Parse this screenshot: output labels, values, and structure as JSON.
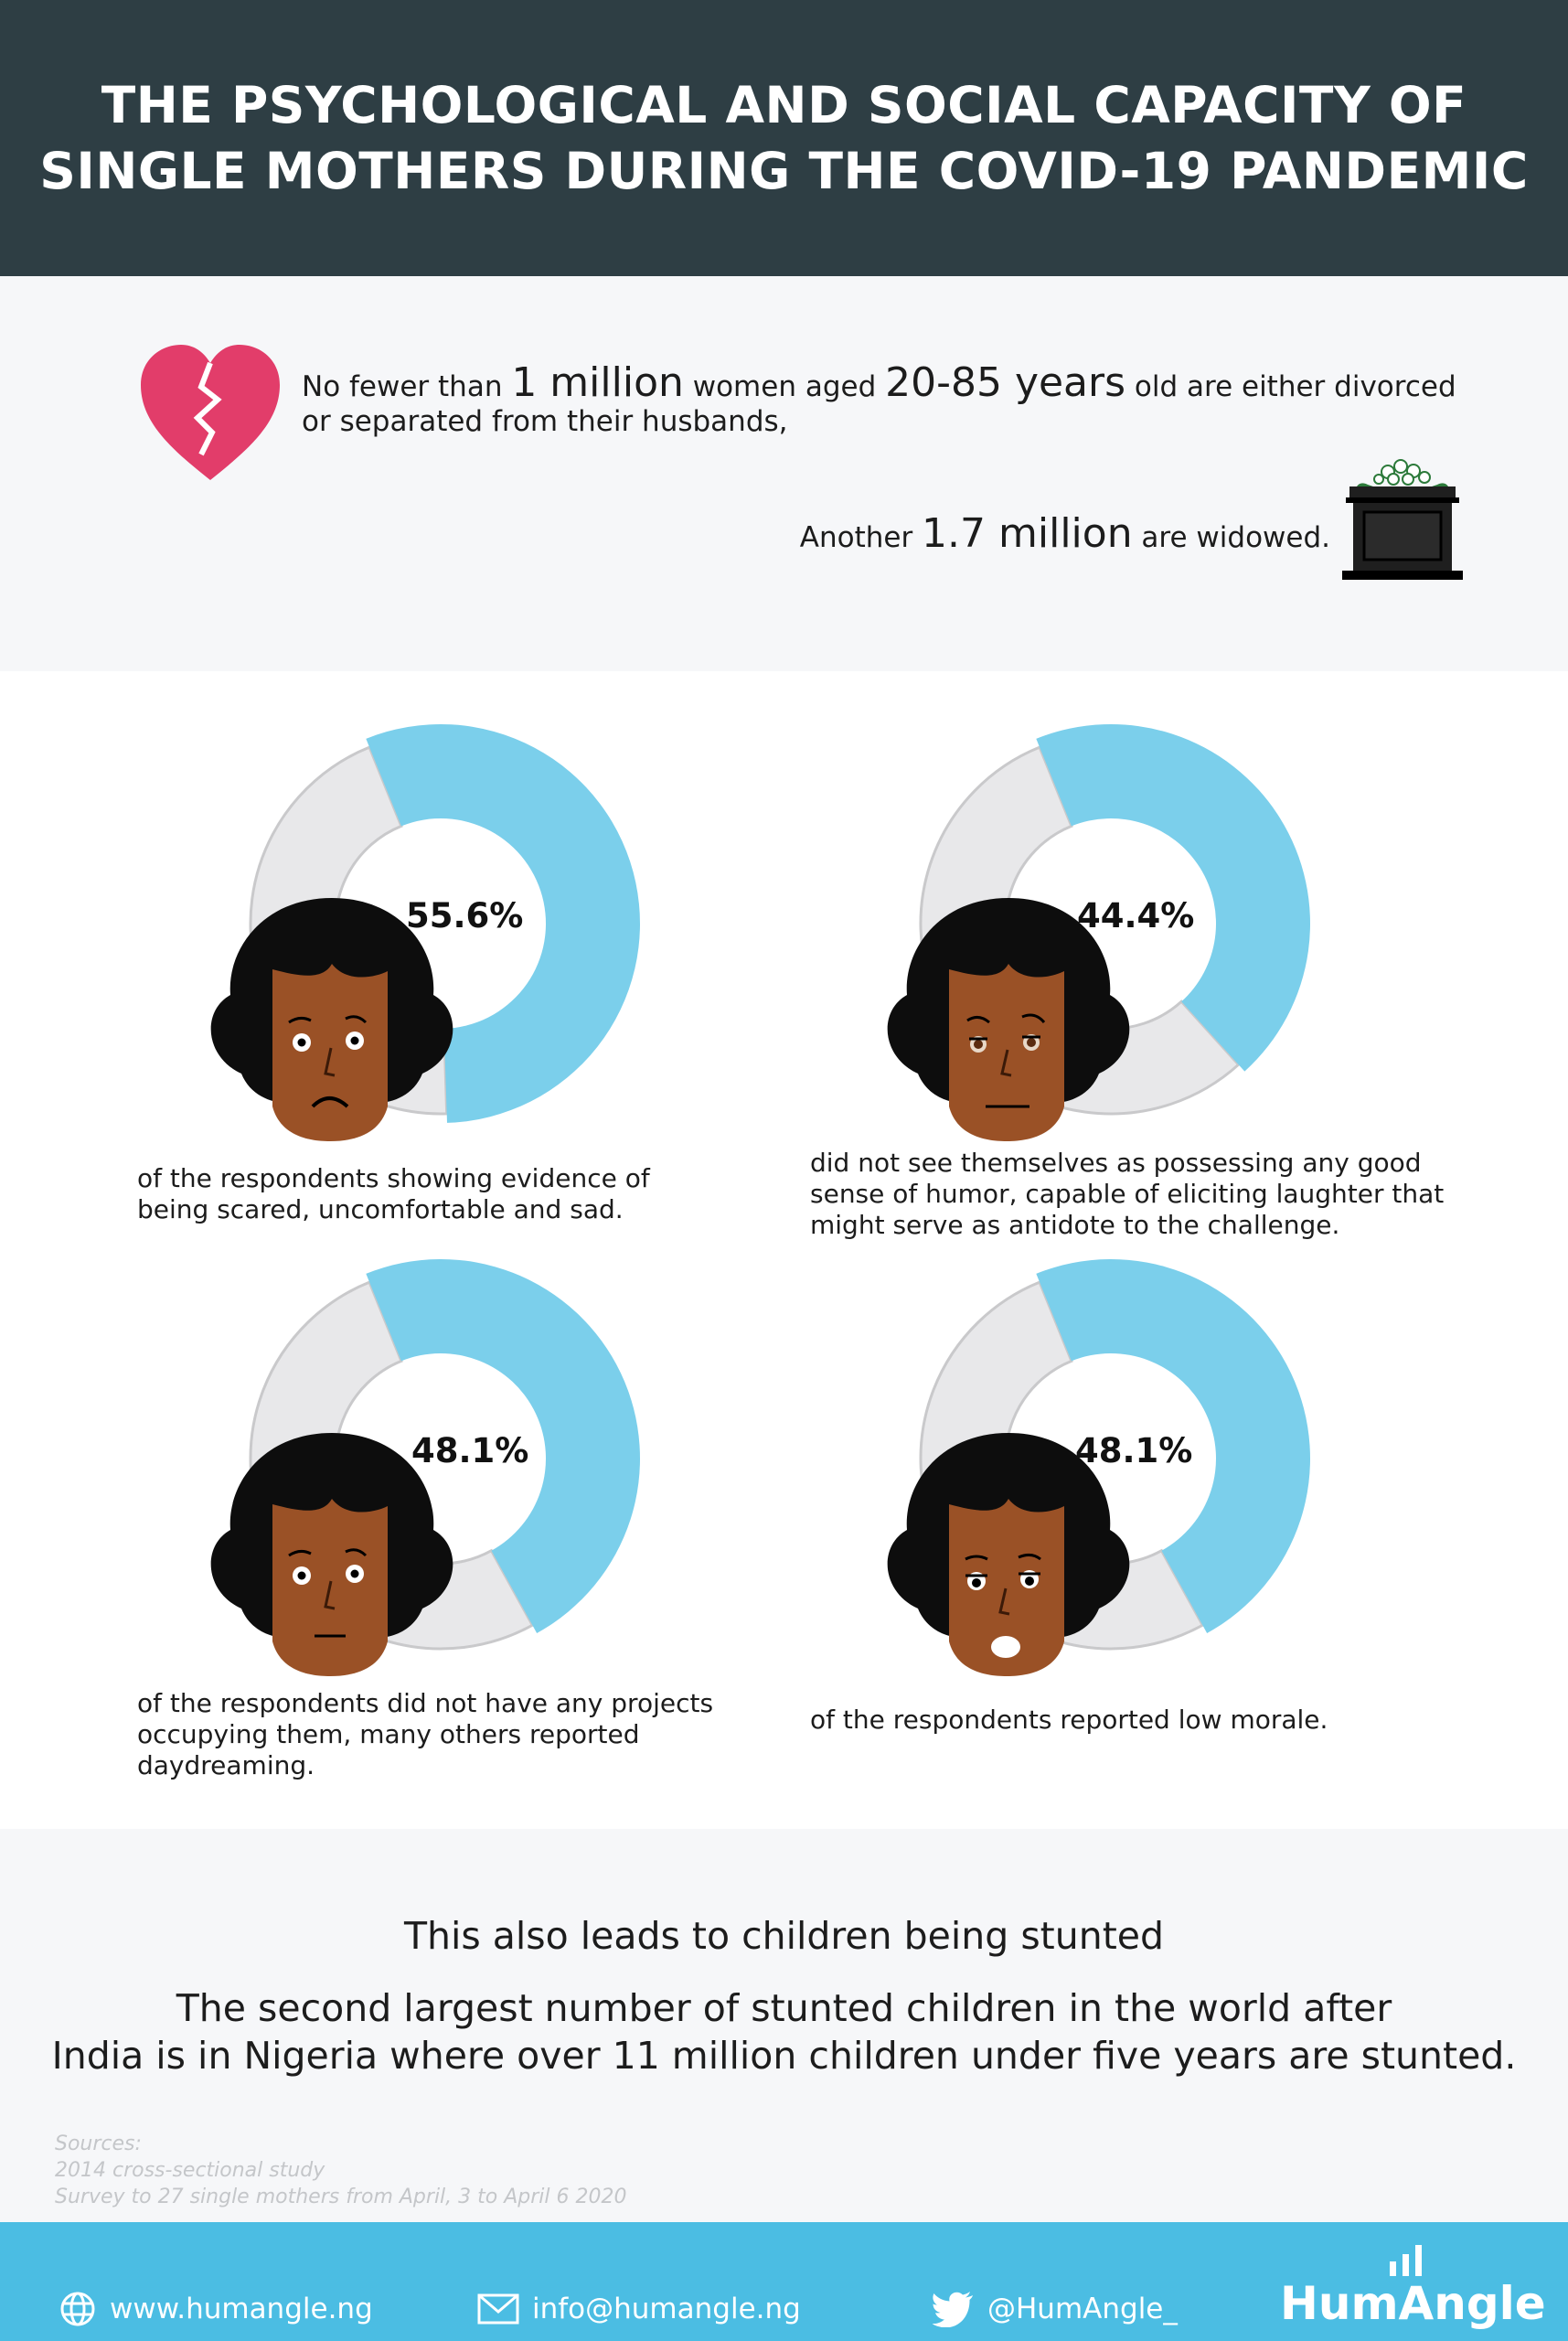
{
  "header": {
    "title_line1": "THE PSYCHOLOGICAL AND SOCIAL CAPACITY OF",
    "title_line2": "SINGLE MOTHERS DURING THE COVID-19 PANDEMIC"
  },
  "intro": {
    "fact1": {
      "pre": "No fewer than ",
      "num1": "1 million",
      "mid": " women aged ",
      "num2": "20-85 years",
      "post": " old are either divorced or separated from their husbands,"
    },
    "fact2": {
      "pre": "Another ",
      "num": "1.7 million",
      "post": " are widowed."
    }
  },
  "chart_data": [
    {
      "type": "pie",
      "label": "55.6%",
      "value": 55.6,
      "caption": "of the respondents showing evidence of being scared, uncomfortable and sad."
    },
    {
      "type": "pie",
      "label": "44.4%",
      "value": 44.4,
      "caption": "did not see themselves as possessing any good sense of humor, capable of eliciting laughter that might serve as antidote to the challenge."
    },
    {
      "type": "pie",
      "label": "48.1%",
      "value": 48.1,
      "caption": "of the respondents did not have any projects occupying them, many others reported daydreaming."
    },
    {
      "type": "pie",
      "label": "48.1%",
      "value": 48.1,
      "caption": "of the respondents reported low morale."
    }
  ],
  "stunt": {
    "heading": "This also leads to children being stunted",
    "body_line1": "The second largest number of stunted children in the world after",
    "body_line2": "India is in Nigeria where over 11 million children under five years are stunted."
  },
  "sources": {
    "label": "Sources:",
    "items": [
      "2014 cross-sectional study",
      "Survey to 27 single mothers from April, 3 to April 6 2020"
    ]
  },
  "footer": {
    "website": "www.humangle.ng",
    "email": "info@humangle.ng",
    "twitter": "@HumAngle_",
    "logo": "HumAngle"
  },
  "colors": {
    "header_bg": "#2e3e44",
    "accent_blue": "#7bcfeb",
    "donut_grey": "#e8e8ea",
    "heart": "#e23d6a",
    "footer_bg": "#4bbde3"
  }
}
